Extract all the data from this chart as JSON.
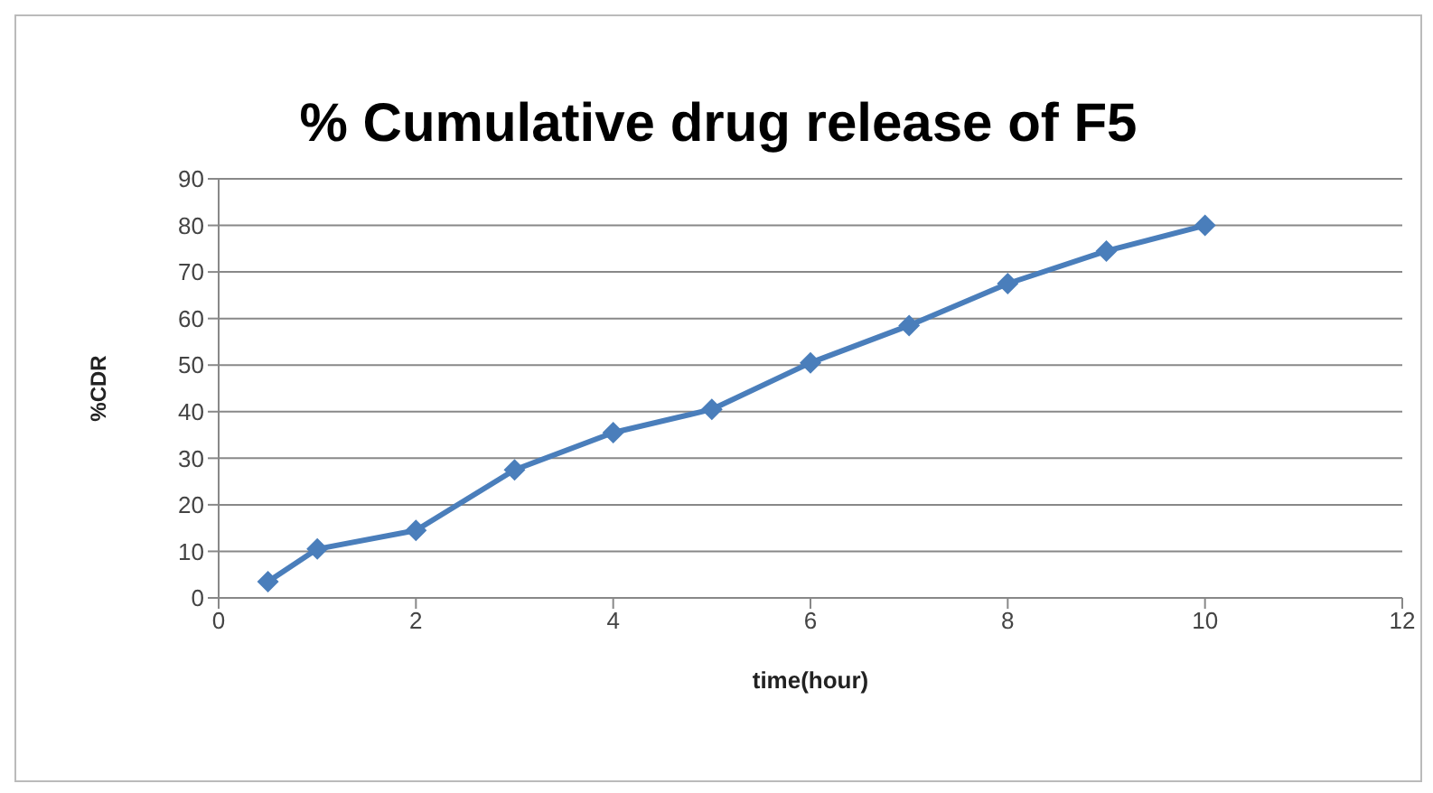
{
  "chart_data": {
    "type": "line",
    "title": "% Cumulative drug release of F5",
    "xlabel": "time(hour)",
    "ylabel": "%CDR",
    "x": [
      0.5,
      1,
      2,
      3,
      4,
      5,
      6,
      7,
      8,
      9,
      10
    ],
    "series": [
      {
        "color": "#4a7ebb",
        "values": [
          3.5,
          10.5,
          14.5,
          27.5,
          35.5,
          40.5,
          50.5,
          58.5,
          67.5,
          74.5,
          80
        ]
      }
    ],
    "xlim": [
      0,
      12
    ],
    "xticks": [
      0,
      2,
      4,
      6,
      8,
      10,
      12
    ],
    "ylim": [
      0,
      90
    ],
    "yticks": [
      0,
      10,
      20,
      30,
      40,
      50,
      60,
      70,
      80,
      90
    ],
    "grid": "y",
    "legend": false,
    "marker": "diamond",
    "line_style": "solid"
  }
}
